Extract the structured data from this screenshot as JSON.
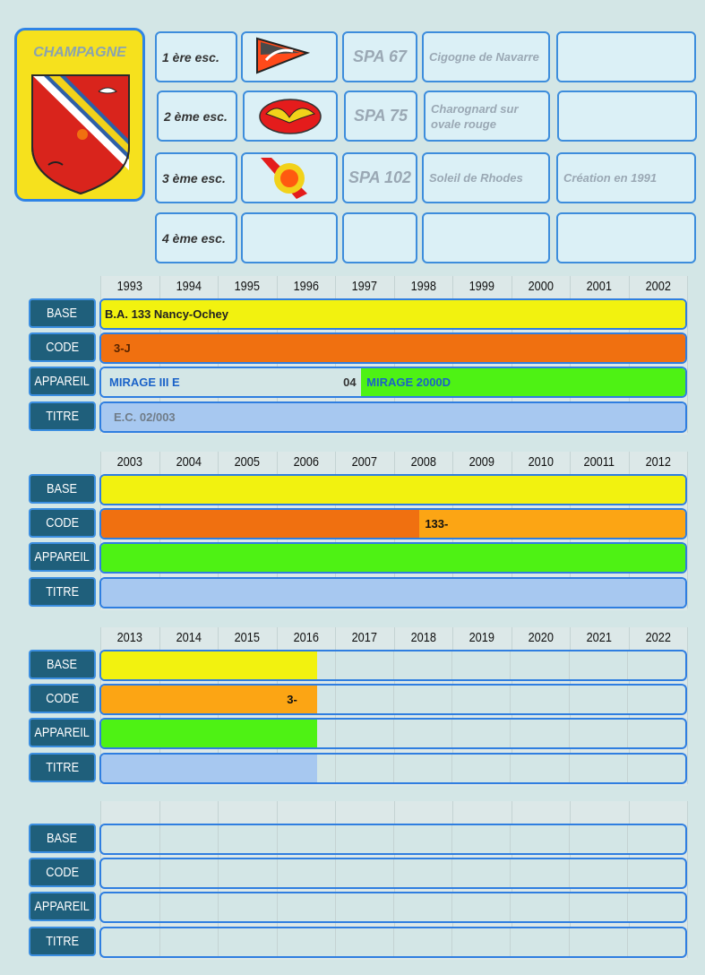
{
  "unit": {
    "name": "CHAMPAGNE",
    "escadrilles": [
      {
        "label": "1 ère esc.",
        "spa": "SPA 67",
        "nickname": "Cigogne de Navarre",
        "note": "",
        "badge": "pennant-stork-badge"
      },
      {
        "label": "2 ème esc.",
        "spa": "SPA 75",
        "nickname": "Charognard sur ovale rouge",
        "note": "",
        "badge": "red-oval-vulture-badge"
      },
      {
        "label": "3 ème esc.",
        "spa": "SPA 102",
        "nickname": "Soleil de Rhodes",
        "note": "Création en 1991",
        "badge": "sun-badge"
      },
      {
        "label": "4 ème esc.",
        "spa": "",
        "nickname": "",
        "note": "",
        "badge": ""
      }
    ]
  },
  "row_labels": {
    "base": "BASE",
    "code": "CODE",
    "appareil": "APPAREIL",
    "titre": "TITRE"
  },
  "colors": {
    "base": "#f2f20f",
    "code_dark": "#f07010",
    "code_light": "#fca514",
    "appareil": "#4ef214",
    "titre": "#a7c8f0",
    "label_bg": "#1f5f7b"
  },
  "timelines": [
    {
      "years": [
        "1993",
        "1994",
        "1995",
        "1996",
        "1997",
        "1998",
        "1999",
        "2000",
        "2001",
        "2002"
      ],
      "base": {
        "text": "B.A. 133 Nancy-Ochey",
        "fill_years": 10
      },
      "code": {
        "text": "3-J",
        "fill_years": 10
      },
      "appareil": {
        "text1": "MIRAGE III E",
        "marker": "04",
        "text2": "MIRAGE 2000D",
        "green_from_years": 4.45
      },
      "titre": {
        "text": "E.C. 02/003",
        "fill_years": 10
      }
    },
    {
      "years": [
        "2003",
        "2004",
        "2005",
        "2006",
        "2007",
        "2008",
        "2009",
        "2010",
        "20011",
        "2012"
      ],
      "base": {
        "text": "",
        "fill_years": 10
      },
      "code": {
        "text": "133-",
        "dark_years": 5.45,
        "fill_years": 10
      },
      "appareil": {
        "fill_years": 10
      },
      "titre": {
        "text": "",
        "fill_years": 10
      }
    },
    {
      "years": [
        "2013",
        "2014",
        "2015",
        "2016",
        "2017",
        "2018",
        "2019",
        "2020",
        "2021",
        "2022"
      ],
      "base": {
        "text": "",
        "fill_years": 3.7
      },
      "code": {
        "text": "3-",
        "fill_years": 3.7
      },
      "appareil": {
        "fill_years": 3.7
      },
      "titre": {
        "text": "",
        "fill_years": 3.7
      }
    },
    {
      "years": [
        "",
        "",
        "",
        "",
        "",
        "",
        "",
        "",
        "",
        ""
      ],
      "base": {
        "text": "",
        "fill_years": 0
      },
      "code": {
        "text": "",
        "fill_years": 0
      },
      "appareil": {
        "fill_years": 0
      },
      "titre": {
        "text": "",
        "fill_years": 0
      }
    }
  ]
}
